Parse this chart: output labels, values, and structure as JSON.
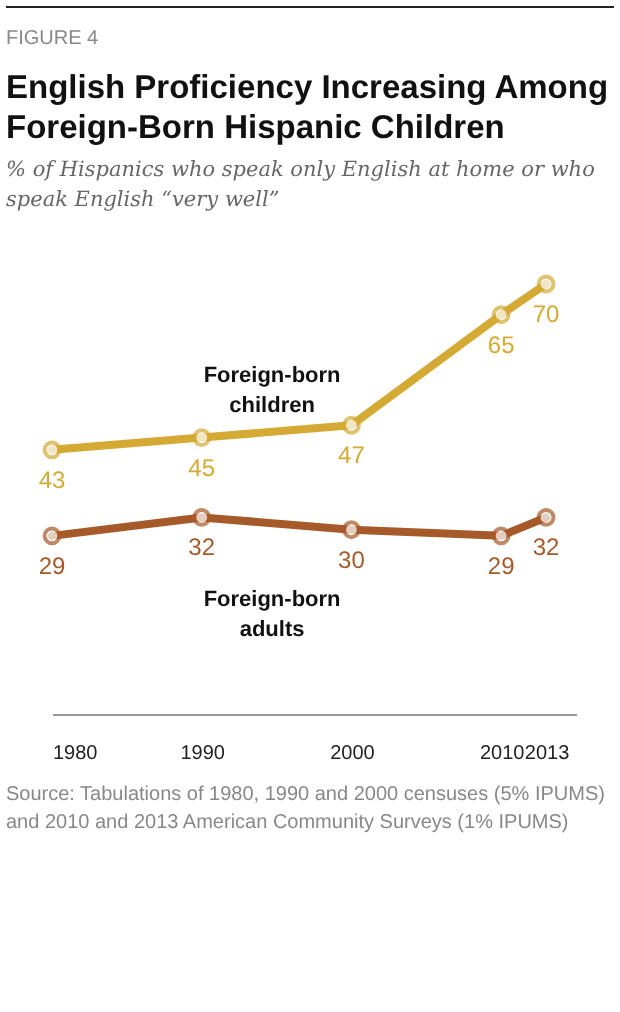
{
  "chart_data": {
    "type": "line",
    "title": "English Proficiency Increasing Among Foreign-Born  Hispanic Children",
    "subtitle": "% of Hispanics who speak only  English at home or who speak English “very well”",
    "annotations": [
      "FIGURE 4",
      "Source: Tabulations of 1980, 1990 and 2000 censuses (5% IPUMS) and 2010 and 2013 American Community Surveys (1% IPUMS)"
    ],
    "x": [
      1980,
      1990,
      2000,
      2010,
      2013
    ],
    "series": [
      {
        "name": "Foreign-born children",
        "color": "#d4aa35",
        "values": [
          43,
          45,
          47,
          65,
          70
        ]
      },
      {
        "name": "Foreign-born adults",
        "color": "#a65a2a",
        "values": [
          29,
          32,
          30,
          29,
          32
        ]
      }
    ],
    "xlim": [
      1980,
      2015
    ],
    "xticks": [
      1980,
      1990,
      2000,
      2010,
      2013
    ],
    "tick_labels": "x",
    "data_labels": true,
    "marker": "circle",
    "grid": false,
    "legend": false
  }
}
